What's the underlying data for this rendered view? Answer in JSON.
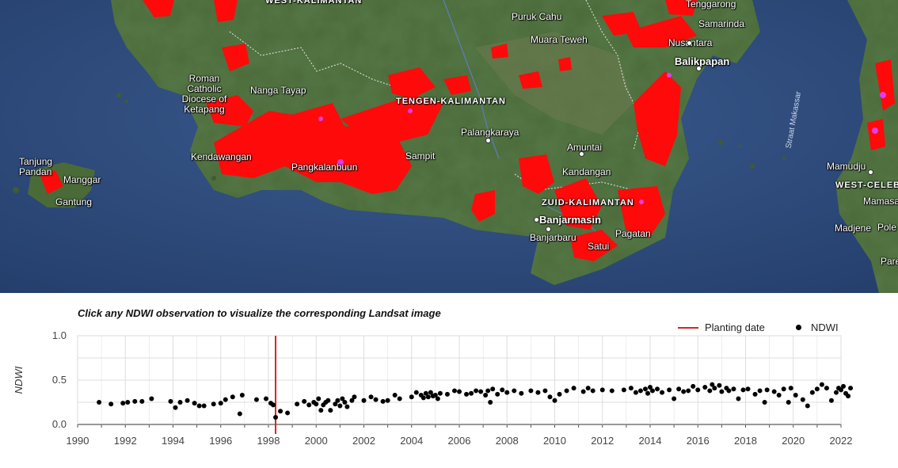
{
  "map": {
    "places": [
      {
        "name": "WEST-KALIMANTAN",
        "kind": "prov"
      },
      {
        "name": "Puruk Cahu",
        "kind": "town"
      },
      {
        "name": "Tenggarong",
        "kind": "town"
      },
      {
        "name": "Samarinda",
        "kind": "town"
      },
      {
        "name": "Muara Teweh",
        "kind": "town"
      },
      {
        "name": "Nusantara",
        "kind": "town"
      },
      {
        "name": "Balikpapan",
        "kind": "city"
      },
      {
        "name": "Roman Catholic Diocese of Ketapang",
        "kind": "town"
      },
      {
        "name": "Nanga Tayap",
        "kind": "town"
      },
      {
        "name": "TENGEN-KALIMANTAN",
        "kind": "prov"
      },
      {
        "name": "Palangkaraya",
        "kind": "town"
      },
      {
        "name": "Amuntai",
        "kind": "town"
      },
      {
        "name": "Tanjung Pandan",
        "kind": "town"
      },
      {
        "name": "Manggar",
        "kind": "town"
      },
      {
        "name": "Gantung",
        "kind": "town"
      },
      {
        "name": "Kendawangan",
        "kind": "town"
      },
      {
        "name": "Pangkalanbuun",
        "kind": "town"
      },
      {
        "name": "Sampit",
        "kind": "town"
      },
      {
        "name": "Kandangan",
        "kind": "town"
      },
      {
        "name": "ZUID-KALIMANTAN",
        "kind": "prov"
      },
      {
        "name": "Banjarmasin",
        "kind": "city"
      },
      {
        "name": "Banjarbaru",
        "kind": "town"
      },
      {
        "name": "Pagatan",
        "kind": "town"
      },
      {
        "name": "Satui",
        "kind": "town"
      },
      {
        "name": "Straat Makassar",
        "kind": "sea"
      },
      {
        "name": "Mamudju",
        "kind": "town"
      },
      {
        "name": "WEST-CELEBES",
        "kind": "prov"
      },
      {
        "name": "Mamasa",
        "kind": "town"
      },
      {
        "name": "Madjene",
        "kind": "town"
      },
      {
        "name": "Pole",
        "kind": "town"
      },
      {
        "name": "Pare",
        "kind": "town"
      }
    ],
    "colors": {
      "sea": "#2b4775",
      "land": "#3f5c32",
      "plantation": "#ff0a0a",
      "highlight": "#e040ff"
    }
  },
  "chart": {
    "title": "Click any NDWI observation to visualize the corresponding Landsat image",
    "legend": {
      "planting_label": "Planting date",
      "ndwi_label": "NDWI"
    },
    "ylabel": "NDWI",
    "colors": {
      "planting": "#d62424",
      "points": "#000000",
      "grid": "#dddddd"
    }
  },
  "chart_data": {
    "type": "scatter",
    "xlabel": "",
    "ylabel": "NDWI",
    "xlim": [
      1990,
      2022
    ],
    "ylim": [
      0.0,
      1.0
    ],
    "x_ticks": [
      "1990",
      "1992",
      "1994",
      "1996",
      "1998",
      "2000",
      "2002",
      "2004",
      "2006",
      "2008",
      "2010",
      "2012",
      "2014",
      "2016",
      "2018",
      "2020",
      "2022"
    ],
    "y_ticks": [
      "0.0",
      "0.5",
      "1.0"
    ],
    "planting_date": 1998.3,
    "series": [
      {
        "name": "NDWI",
        "points": [
          [
            1990.9,
            0.25
          ],
          [
            1991.4,
            0.23
          ],
          [
            1991.9,
            0.24
          ],
          [
            1992.1,
            0.25
          ],
          [
            1992.4,
            0.26
          ],
          [
            1992.7,
            0.26
          ],
          [
            1993.1,
            0.29
          ],
          [
            1993.9,
            0.26
          ],
          [
            1994.1,
            0.19
          ],
          [
            1994.3,
            0.25
          ],
          [
            1994.6,
            0.27
          ],
          [
            1994.9,
            0.24
          ],
          [
            1995.1,
            0.21
          ],
          [
            1995.3,
            0.21
          ],
          [
            1995.7,
            0.23
          ],
          [
            1996.0,
            0.24
          ],
          [
            1996.2,
            0.28
          ],
          [
            1996.5,
            0.31
          ],
          [
            1996.8,
            0.12
          ],
          [
            1996.9,
            0.33
          ],
          [
            1997.5,
            0.28
          ],
          [
            1997.9,
            0.29
          ],
          [
            1998.1,
            0.24
          ],
          [
            1998.2,
            0.22
          ],
          [
            1998.3,
            0.08
          ],
          [
            1998.5,
            0.15
          ],
          [
            1998.8,
            0.13
          ],
          [
            1999.2,
            0.23
          ],
          [
            1999.5,
            0.26
          ],
          [
            1999.7,
            0.22
          ],
          [
            1999.9,
            0.25
          ],
          [
            2000.0,
            0.23
          ],
          [
            2000.1,
            0.29
          ],
          [
            2000.2,
            0.16
          ],
          [
            2000.3,
            0.22
          ],
          [
            2000.4,
            0.25
          ],
          [
            2000.5,
            0.27
          ],
          [
            2000.6,
            0.16
          ],
          [
            2000.8,
            0.23
          ],
          [
            2000.9,
            0.27
          ],
          [
            2001.0,
            0.21
          ],
          [
            2001.1,
            0.29
          ],
          [
            2001.2,
            0.25
          ],
          [
            2001.3,
            0.2
          ],
          [
            2001.5,
            0.27
          ],
          [
            2001.6,
            0.31
          ],
          [
            2002.0,
            0.27
          ],
          [
            2002.3,
            0.31
          ],
          [
            2002.5,
            0.28
          ],
          [
            2002.8,
            0.26
          ],
          [
            2003.0,
            0.27
          ],
          [
            2003.3,
            0.33
          ],
          [
            2003.5,
            0.29
          ],
          [
            2004.0,
            0.31
          ],
          [
            2004.2,
            0.36
          ],
          [
            2004.4,
            0.33
          ],
          [
            2004.5,
            0.3
          ],
          [
            2004.6,
            0.35
          ],
          [
            2004.7,
            0.31
          ],
          [
            2004.8,
            0.36
          ],
          [
            2004.9,
            0.32
          ],
          [
            2005.0,
            0.33
          ],
          [
            2005.1,
            0.29
          ],
          [
            2005.2,
            0.35
          ],
          [
            2005.5,
            0.34
          ],
          [
            2005.8,
            0.38
          ],
          [
            2006.0,
            0.37
          ],
          [
            2006.3,
            0.34
          ],
          [
            2006.5,
            0.35
          ],
          [
            2006.7,
            0.38
          ],
          [
            2006.9,
            0.37
          ],
          [
            2007.1,
            0.33
          ],
          [
            2007.2,
            0.38
          ],
          [
            2007.3,
            0.25
          ],
          [
            2007.4,
            0.4
          ],
          [
            2007.6,
            0.34
          ],
          [
            2007.8,
            0.39
          ],
          [
            2008.0,
            0.36
          ],
          [
            2008.3,
            0.38
          ],
          [
            2008.6,
            0.35
          ],
          [
            2009.0,
            0.38
          ],
          [
            2009.3,
            0.36
          ],
          [
            2009.6,
            0.38
          ],
          [
            2009.8,
            0.31
          ],
          [
            2010.0,
            0.27
          ],
          [
            2010.2,
            0.34
          ],
          [
            2010.5,
            0.38
          ],
          [
            2010.8,
            0.41
          ],
          [
            2011.2,
            0.37
          ],
          [
            2011.4,
            0.41
          ],
          [
            2011.6,
            0.38
          ],
          [
            2012.0,
            0.39
          ],
          [
            2012.4,
            0.38
          ],
          [
            2012.9,
            0.39
          ],
          [
            2013.2,
            0.41
          ],
          [
            2013.4,
            0.36
          ],
          [
            2013.6,
            0.38
          ],
          [
            2013.8,
            0.4
          ],
          [
            2013.9,
            0.35
          ],
          [
            2014.0,
            0.42
          ],
          [
            2014.1,
            0.38
          ],
          [
            2014.3,
            0.4
          ],
          [
            2014.5,
            0.36
          ],
          [
            2014.8,
            0.39
          ],
          [
            2015.0,
            0.29
          ],
          [
            2015.2,
            0.4
          ],
          [
            2015.4,
            0.37
          ],
          [
            2015.6,
            0.38
          ],
          [
            2015.8,
            0.43
          ],
          [
            2016.0,
            0.39
          ],
          [
            2016.3,
            0.42
          ],
          [
            2016.5,
            0.38
          ],
          [
            2016.6,
            0.45
          ],
          [
            2016.7,
            0.41
          ],
          [
            2016.9,
            0.44
          ],
          [
            2017.0,
            0.37
          ],
          [
            2017.2,
            0.41
          ],
          [
            2017.3,
            0.38
          ],
          [
            2017.5,
            0.4
          ],
          [
            2017.7,
            0.29
          ],
          [
            2017.9,
            0.39
          ],
          [
            2018.1,
            0.4
          ],
          [
            2018.4,
            0.34
          ],
          [
            2018.6,
            0.38
          ],
          [
            2018.8,
            0.25
          ],
          [
            2018.9,
            0.39
          ],
          [
            2019.2,
            0.37
          ],
          [
            2019.4,
            0.33
          ],
          [
            2019.6,
            0.4
          ],
          [
            2019.8,
            0.25
          ],
          [
            2019.9,
            0.41
          ],
          [
            2020.1,
            0.33
          ],
          [
            2020.4,
            0.28
          ],
          [
            2020.6,
            0.21
          ],
          [
            2020.8,
            0.36
          ],
          [
            2021.0,
            0.4
          ],
          [
            2021.2,
            0.45
          ],
          [
            2021.4,
            0.41
          ],
          [
            2021.6,
            0.27
          ],
          [
            2021.8,
            0.36
          ],
          [
            2021.9,
            0.41
          ],
          [
            2022.0,
            0.39
          ],
          [
            2022.1,
            0.43
          ],
          [
            2022.2,
            0.35
          ],
          [
            2022.3,
            0.32
          ],
          [
            2022.4,
            0.41
          ]
        ]
      }
    ],
    "grid": true,
    "legend_position": "top-right"
  }
}
